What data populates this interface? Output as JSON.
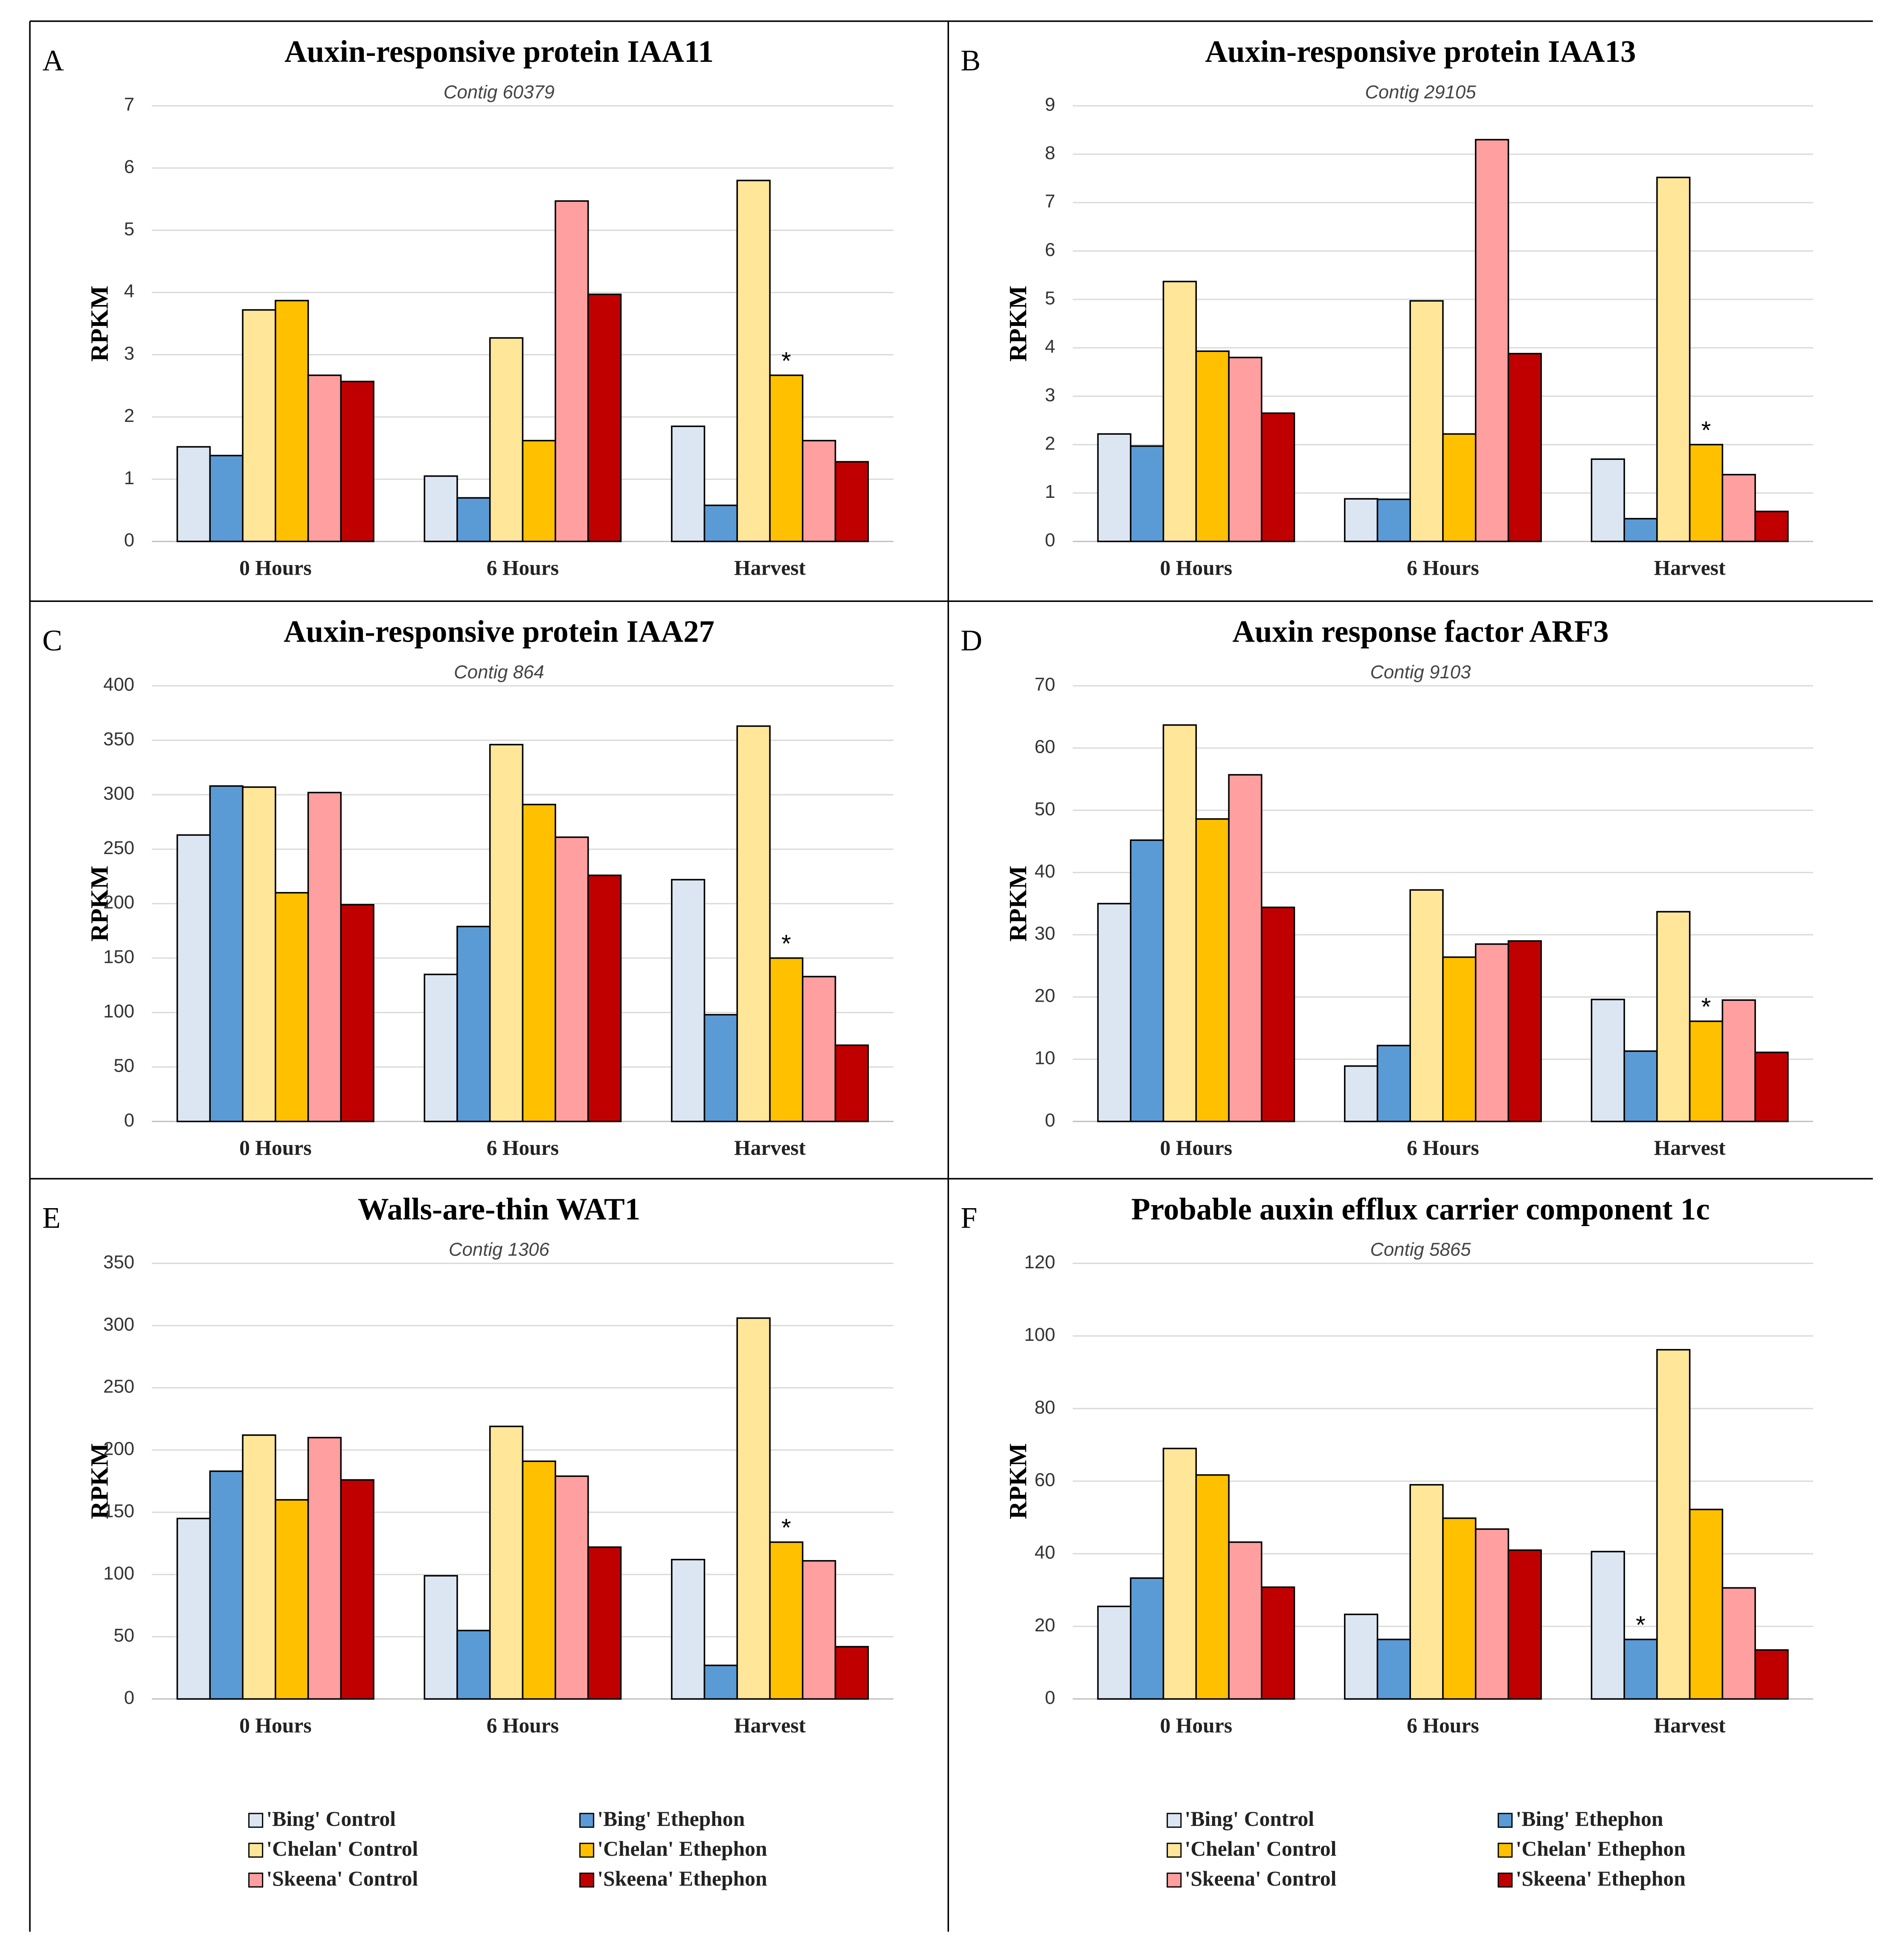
{
  "chart_data": [
    {
      "type": "bar",
      "panel": "A",
      "title": "Auxin-responsive protein IAA11",
      "subtitle": "Contig 60379",
      "y_label": "RPKM",
      "categories": [
        "0 Hours",
        "6 Hours",
        "Harvest"
      ],
      "series": [
        {
          "name": "'Bing' Control",
          "color": "#dce6f2",
          "values": [
            1.52,
            1.05,
            1.85
          ]
        },
        {
          "name": "'Bing' Ethephon",
          "color": "#5b9bd5",
          "values": [
            1.38,
            0.7,
            0.58
          ]
        },
        {
          "name": "'Chelan' Control",
          "color": "#ffe699",
          "values": [
            3.72,
            3.27,
            5.8
          ]
        },
        {
          "name": "'Chelan' Ethephon",
          "color": "#ffc000",
          "values": [
            3.87,
            1.62,
            2.67
          ]
        },
        {
          "name": "'Skeena' Control",
          "color": "#ff9f9f",
          "values": [
            2.67,
            5.47,
            1.62
          ]
        },
        {
          "name": "'Skeena' Ethephon",
          "color": "#c00000",
          "values": [
            2.57,
            3.97,
            1.28
          ]
        }
      ],
      "ylim": [
        0,
        7
      ],
      "yticks": [
        0,
        1,
        2,
        3,
        4,
        5,
        6,
        7
      ],
      "grid": true,
      "annotations": [
        {
          "text": "*",
          "series": "'Chelan' Ethephon",
          "category": "Harvest"
        }
      ]
    },
    {
      "type": "bar",
      "panel": "B",
      "title": "Auxin-responsive protein IAA13",
      "subtitle": "Contig 29105",
      "y_label": "RPKM",
      "categories": [
        "0 Hours",
        "6 Hours",
        "Harvest"
      ],
      "series": [
        {
          "name": "'Bing' Control",
          "color": "#dce6f2",
          "values": [
            2.22,
            0.88,
            1.7
          ]
        },
        {
          "name": "'Bing' Ethephon",
          "color": "#5b9bd5",
          "values": [
            1.97,
            0.87,
            0.47
          ]
        },
        {
          "name": "'Chelan' Control",
          "color": "#ffe699",
          "values": [
            5.37,
            4.97,
            7.52
          ]
        },
        {
          "name": "'Chelan' Ethephon",
          "color": "#ffc000",
          "values": [
            3.93,
            2.22,
            2.0
          ]
        },
        {
          "name": "'Skeena' Control",
          "color": "#ff9f9f",
          "values": [
            3.8,
            8.3,
            1.38
          ]
        },
        {
          "name": "'Skeena' Ethephon",
          "color": "#c00000",
          "values": [
            2.65,
            3.88,
            0.62
          ]
        }
      ],
      "ylim": [
        0,
        9
      ],
      "yticks": [
        0,
        1,
        2,
        3,
        4,
        5,
        6,
        7,
        8,
        9
      ],
      "grid": true,
      "annotations": [
        {
          "text": "*",
          "series": "'Chelan' Ethephon",
          "category": "Harvest"
        }
      ]
    },
    {
      "type": "bar",
      "panel": "C",
      "title": "Auxin-responsive protein IAA27",
      "subtitle": "Contig 864",
      "y_label": "RPKM",
      "categories": [
        "0 Hours",
        "6 Hours",
        "Harvest"
      ],
      "series": [
        {
          "name": "'Bing' Control",
          "color": "#dce6f2",
          "values": [
            263,
            135,
            222
          ]
        },
        {
          "name": "'Bing' Ethephon",
          "color": "#5b9bd5",
          "values": [
            308,
            179,
            98
          ]
        },
        {
          "name": "'Chelan' Control",
          "color": "#ffe699",
          "values": [
            307,
            346,
            363
          ]
        },
        {
          "name": "'Chelan' Ethephon",
          "color": "#ffc000",
          "values": [
            210,
            291,
            150
          ]
        },
        {
          "name": "'Skeena' Control",
          "color": "#ff9f9f",
          "values": [
            302,
            261,
            133
          ]
        },
        {
          "name": "'Skeena' Ethephon",
          "color": "#c00000",
          "values": [
            199,
            226,
            70
          ]
        }
      ],
      "ylim": [
        0,
        400
      ],
      "yticks": [
        0,
        50,
        100,
        150,
        200,
        250,
        300,
        350,
        400
      ],
      "grid": true,
      "annotations": [
        {
          "text": "*",
          "series": "'Chelan' Ethephon",
          "category": "Harvest"
        }
      ]
    },
    {
      "type": "bar",
      "panel": "D",
      "title": "Auxin response factor ARF3",
      "subtitle": "Contig 9103",
      "y_label": "RPKM",
      "categories": [
        "0 Hours",
        "6 Hours",
        "Harvest"
      ],
      "series": [
        {
          "name": "'Bing' Control",
          "color": "#dce6f2",
          "values": [
            35,
            8.9,
            19.6
          ]
        },
        {
          "name": "'Bing' Ethephon",
          "color": "#5b9bd5",
          "values": [
            45.2,
            12.2,
            11.3
          ]
        },
        {
          "name": "'Chelan' Control",
          "color": "#ffe699",
          "values": [
            63.7,
            37.2,
            33.7
          ]
        },
        {
          "name": "'Chelan' Ethephon",
          "color": "#ffc000",
          "values": [
            48.6,
            26.4,
            16.1
          ]
        },
        {
          "name": "'Skeena' Control",
          "color": "#ff9f9f",
          "values": [
            55.7,
            28.5,
            19.5
          ]
        },
        {
          "name": "'Skeena' Ethephon",
          "color": "#c00000",
          "values": [
            34.4,
            29,
            11.1
          ]
        }
      ],
      "ylim": [
        0,
        70
      ],
      "yticks": [
        0,
        10,
        20,
        30,
        40,
        50,
        60,
        70
      ],
      "grid": true,
      "annotations": [
        {
          "text": "*",
          "series": "'Chelan' Ethephon",
          "category": "Harvest"
        }
      ]
    },
    {
      "type": "bar",
      "panel": "E",
      "title": "Walls-are-thin WAT1",
      "subtitle": "Contig 1306",
      "y_label": "RPKM",
      "categories": [
        "0 Hours",
        "6 Hours",
        "Harvest"
      ],
      "series": [
        {
          "name": "'Bing' Control",
          "color": "#dce6f2",
          "values": [
            145,
            99,
            112
          ]
        },
        {
          "name": "'Bing' Ethephon",
          "color": "#5b9bd5",
          "values": [
            183,
            55,
            27
          ]
        },
        {
          "name": "'Chelan' Control",
          "color": "#ffe699",
          "values": [
            212,
            219,
            306
          ]
        },
        {
          "name": "'Chelan' Ethephon",
          "color": "#ffc000",
          "values": [
            160,
            191,
            126
          ]
        },
        {
          "name": "'Skeena' Control",
          "color": "#ff9f9f",
          "values": [
            210,
            179,
            111
          ]
        },
        {
          "name": "'Skeena' Ethephon",
          "color": "#c00000",
          "values": [
            176,
            122,
            42
          ]
        }
      ],
      "ylim": [
        0,
        350
      ],
      "yticks": [
        0,
        50,
        100,
        150,
        200,
        250,
        300,
        350
      ],
      "grid": true,
      "legend": "bottom",
      "annotations": [
        {
          "text": "*",
          "series": "'Chelan' Ethephon",
          "category": "Harvest"
        }
      ]
    },
    {
      "type": "bar",
      "panel": "F",
      "title": "Probable auxin efflux carrier component 1c",
      "subtitle": "Contig 5865",
      "y_label": "RPKM",
      "categories": [
        "0 Hours",
        "6 Hours",
        "Harvest"
      ],
      "series": [
        {
          "name": "'Bing' Control",
          "color": "#dce6f2",
          "values": [
            25.5,
            23.3,
            40.6
          ]
        },
        {
          "name": "'Bing' Ethephon",
          "color": "#5b9bd5",
          "values": [
            33.3,
            16.4,
            16.4
          ]
        },
        {
          "name": "'Chelan' Control",
          "color": "#ffe699",
          "values": [
            69,
            59,
            96.2
          ]
        },
        {
          "name": "'Chelan' Ethephon",
          "color": "#ffc000",
          "values": [
            61.7,
            49.8,
            52.2
          ]
        },
        {
          "name": "'Skeena' Control",
          "color": "#ff9f9f",
          "values": [
            43.2,
            46.8,
            30.6
          ]
        },
        {
          "name": "'Skeena' Ethephon",
          "color": "#c00000",
          "values": [
            30.8,
            41,
            13.5
          ]
        }
      ],
      "ylim": [
        0,
        120
      ],
      "yticks": [
        0,
        20,
        40,
        60,
        80,
        100,
        120
      ],
      "grid": true,
      "legend": "bottom",
      "annotations": [
        {
          "text": "*",
          "series": "'Bing' Ethephon",
          "category": "Harvest"
        }
      ]
    }
  ]
}
